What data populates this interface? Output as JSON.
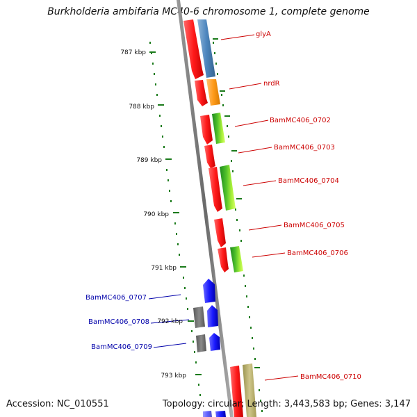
{
  "title": "Burkholderia ambifaria MC40-6 chromosome 1, complete genome",
  "footer": {
    "accession": "Accession: NC_010551",
    "topology": "Topology: circular; Length: 3,443,583 bp; Genes: 3,147"
  },
  "kbp_labels": [
    "787 kbp",
    "788 kbp",
    "789 kbp",
    "790 kbp",
    "791 kbp",
    "792 kbp",
    "793 kbp"
  ],
  "genes_right": [
    "glyA",
    "nrdR",
    "BamMC406_0702",
    "BamMC406_0703",
    "BamMC406_0704",
    "BamMC406_0705",
    "BamMC406_0706",
    "BamMC406_0710"
  ],
  "genes_left": [
    "BamMC406_0707",
    "BamMC406_0708",
    "BamMC406_0709"
  ],
  "colors": {
    "right_label": "#cc0000",
    "left_label": "#0000aa",
    "tick": "#1a7a1a",
    "forward_cds": "#ff2020",
    "reverse_cds": "#1a1aff"
  }
}
